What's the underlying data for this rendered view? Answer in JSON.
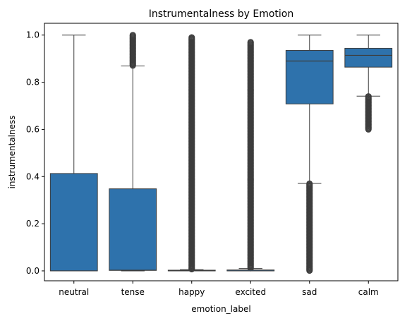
{
  "chart_data": {
    "type": "box",
    "title": "Instrumentalness by Emotion",
    "xlabel": "emotion_label",
    "ylabel": "instrumentalness",
    "ylim": [
      -0.042,
      1.05
    ],
    "yticks": [
      0.0,
      0.2,
      0.4,
      0.6,
      0.8,
      1.0
    ],
    "ytick_labels": [
      "0.0",
      "0.2",
      "0.4",
      "0.6",
      "0.8",
      "1.0"
    ],
    "grid": false,
    "box_color": "#2e72ac",
    "line_color": "#3d3d3d",
    "categories": [
      "neutral",
      "tense",
      "happy",
      "excited",
      "sad",
      "calm"
    ],
    "boxes": [
      {
        "label": "neutral",
        "whisker_low": 0.0,
        "q1": 0.0,
        "median": 0.0,
        "q3": 0.413,
        "whisker_high": 1.0,
        "outliers": {
          "from": null,
          "to": null
        }
      },
      {
        "label": "tense",
        "whisker_low": 0.0,
        "q1": 0.002,
        "median": 0.003,
        "q3": 0.348,
        "whisker_high": 0.869,
        "outliers": {
          "from": 0.87,
          "to": 1.0
        }
      },
      {
        "label": "happy",
        "whisker_low": 0.0,
        "q1": 0.0,
        "median": 0.0,
        "q3": 0.003,
        "whisker_high": 0.005,
        "outliers": {
          "from": 0.006,
          "to": 0.99
        }
      },
      {
        "label": "excited",
        "whisker_low": 0.0,
        "q1": 0.0,
        "median": 0.0,
        "q3": 0.004,
        "whisker_high": 0.01,
        "outliers": {
          "from": 0.011,
          "to": 0.97
        }
      },
      {
        "label": "sad",
        "whisker_low": 0.371,
        "q1": 0.708,
        "median": 0.89,
        "q3": 0.935,
        "whisker_high": 1.0,
        "outliers": {
          "from": 0.0,
          "to": 0.37
        }
      },
      {
        "label": "calm",
        "whisker_low": 0.741,
        "q1": 0.864,
        "median": 0.914,
        "q3": 0.944,
        "whisker_high": 1.0,
        "outliers": {
          "from": 0.6,
          "to": 0.74
        }
      }
    ]
  }
}
